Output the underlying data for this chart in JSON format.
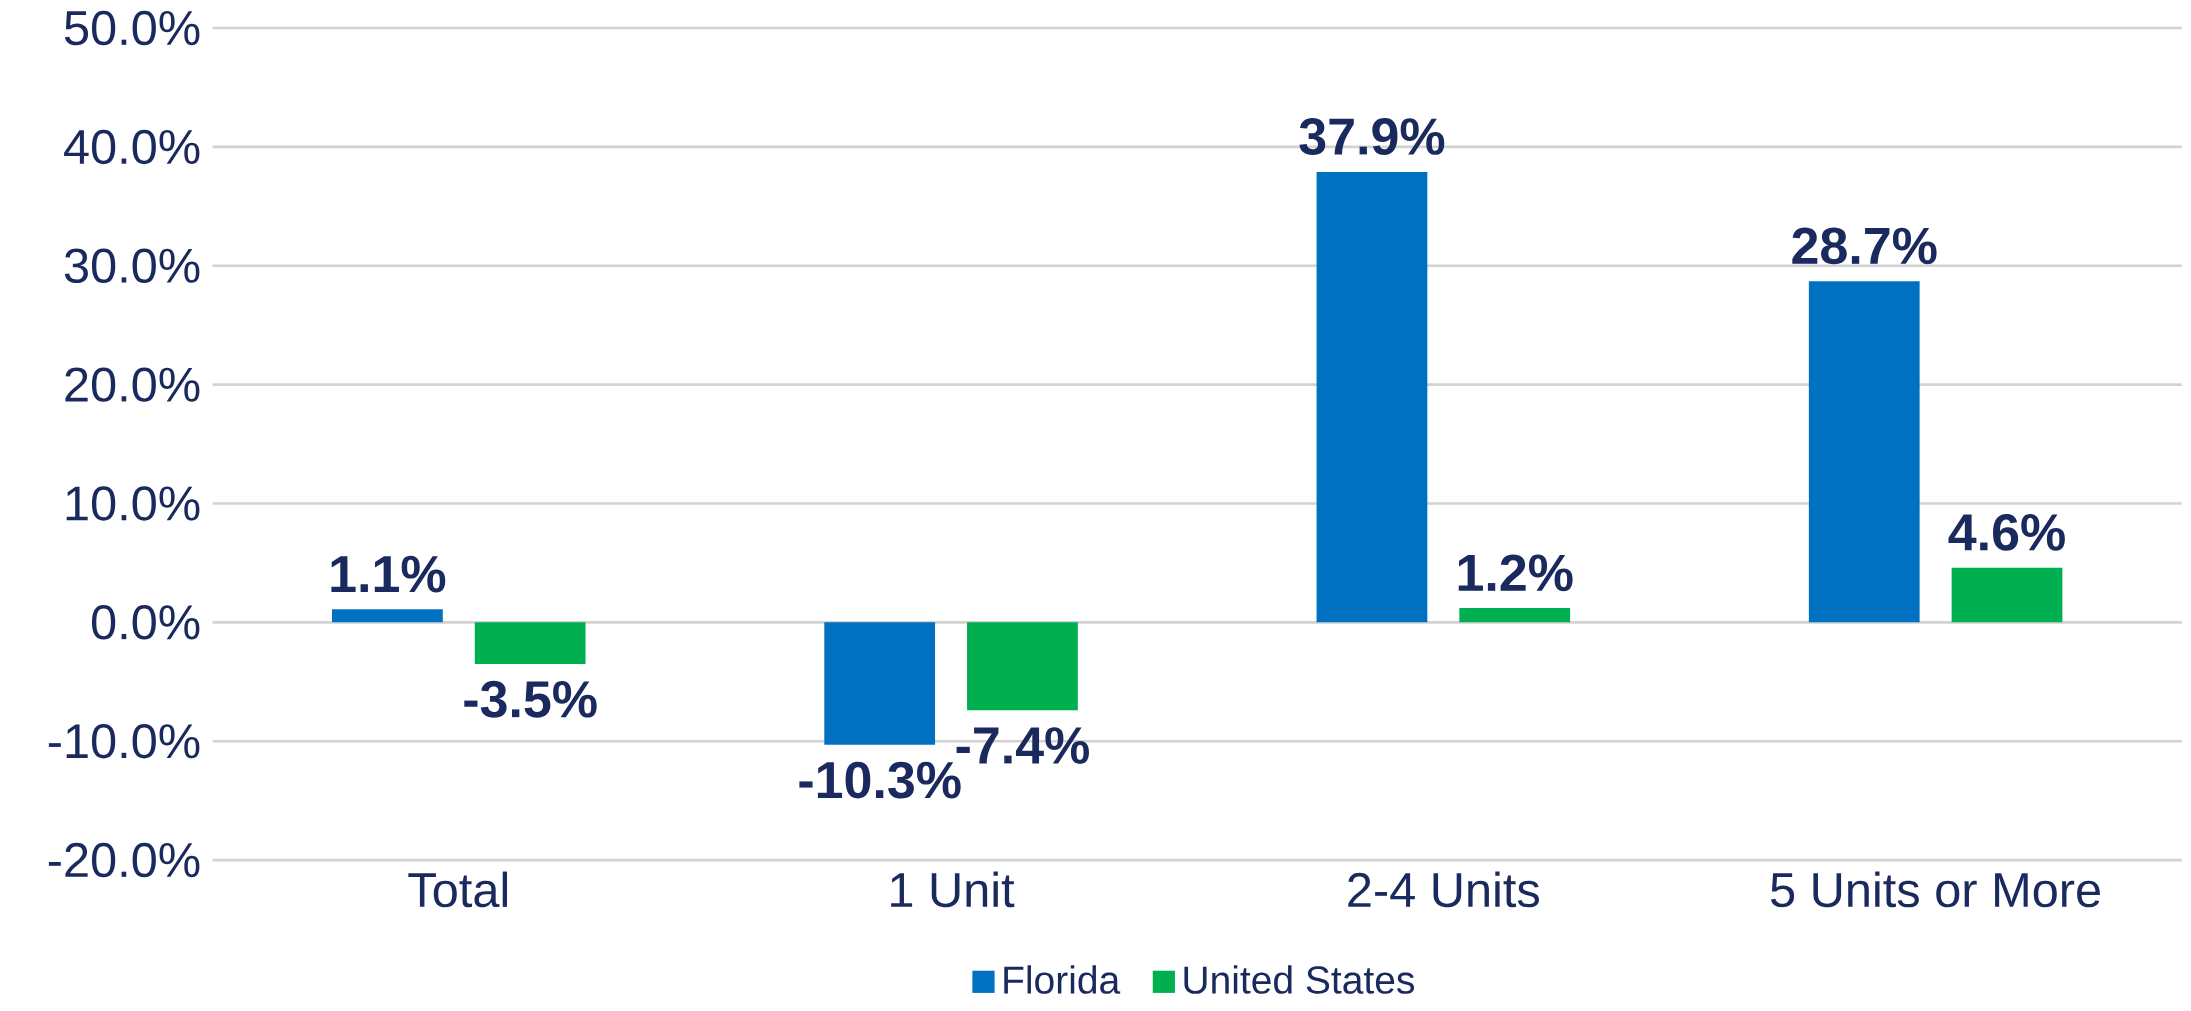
{
  "chart_data": {
    "type": "bar",
    "categories": [
      "Total",
      "1 Unit",
      "2-4 Units",
      "5 Units or More"
    ],
    "series": [
      {
        "name": "Florida",
        "color": "#0070c0",
        "values": [
          1.1,
          -10.3,
          37.9,
          28.7
        ],
        "value_labels": [
          "1.1%",
          "-10.3%",
          "37.9%",
          "28.7%"
        ]
      },
      {
        "name": "United States",
        "color": "#00b050",
        "values": [
          -3.5,
          -7.4,
          1.2,
          4.6
        ],
        "value_labels": [
          "-3.5%",
          "-7.4%",
          "1.2%",
          "4.6%"
        ]
      }
    ],
    "ylim": [
      -20,
      50
    ],
    "yticks": [
      {
        "value": -20,
        "label": "-20.0%"
      },
      {
        "value": -10,
        "label": "-10.0%"
      },
      {
        "value": 0,
        "label": "0.0%"
      },
      {
        "value": 10,
        "label": "10.0%"
      },
      {
        "value": 20,
        "label": "20.0%"
      },
      {
        "value": 30,
        "label": "30.0%"
      },
      {
        "value": 40,
        "label": "40.0%"
      },
      {
        "value": 50,
        "label": "50.0%"
      }
    ],
    "grid": "y",
    "legend": "bottom"
  }
}
